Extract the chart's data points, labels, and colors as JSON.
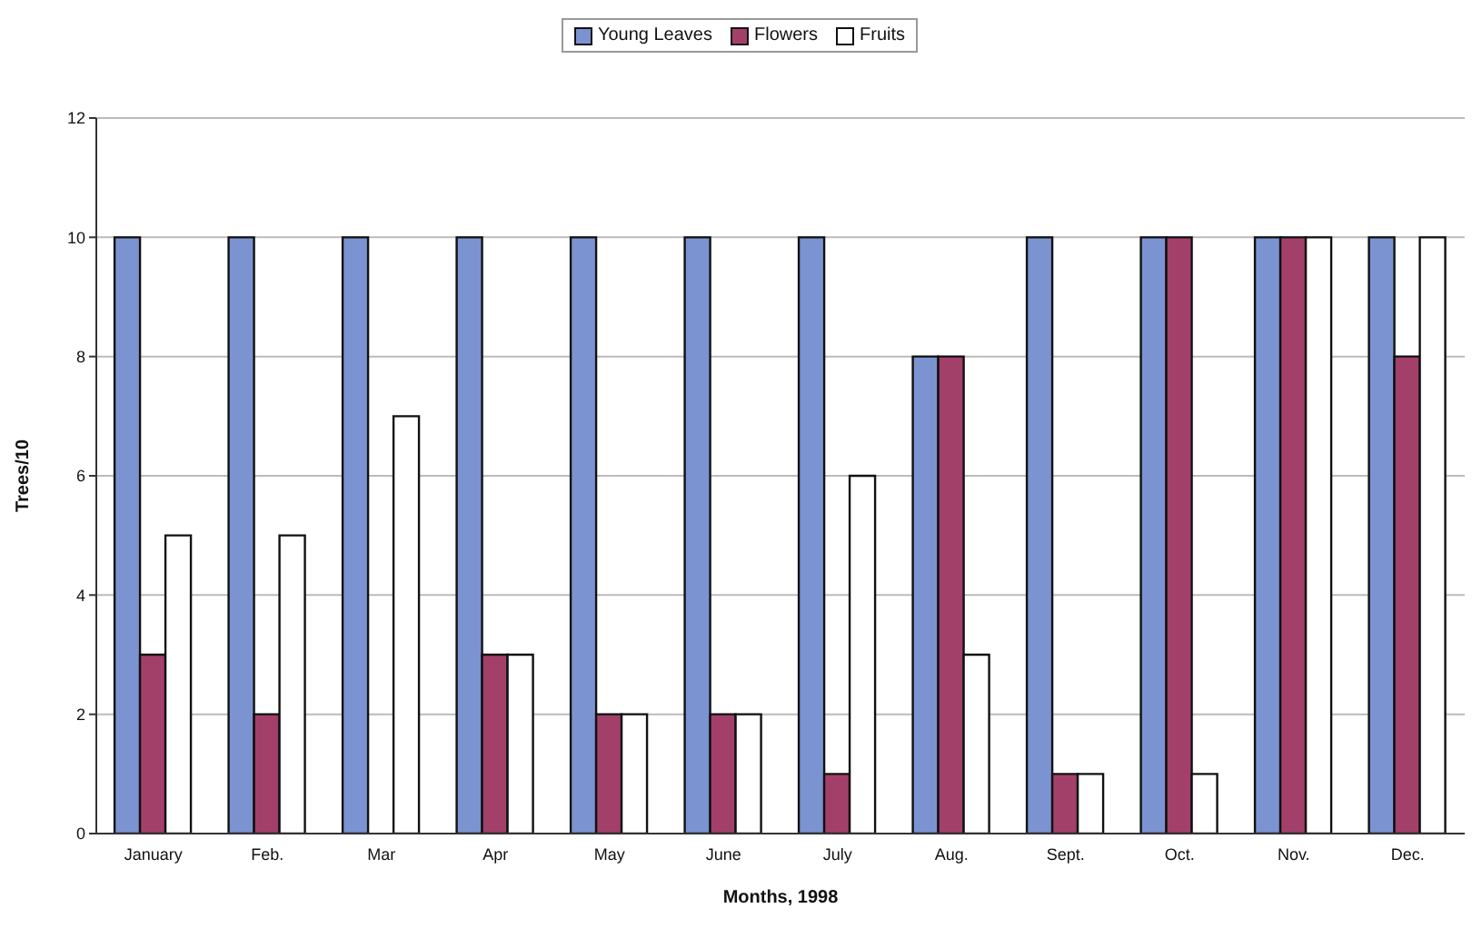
{
  "chart_data": {
    "type": "bar",
    "xlabel": "Months, 1998",
    "ylabel": "Trees/10",
    "categories": [
      "January",
      "Feb.",
      "Mar",
      "Apr",
      "May",
      "June",
      "July",
      "Aug.",
      "Sept.",
      "Oct.",
      "Nov.",
      "Dec."
    ],
    "series": [
      {
        "name": "Young Leaves",
        "color": "#7b93d0",
        "values": [
          10,
          10,
          10,
          10,
          10,
          10,
          10,
          8,
          10,
          10,
          10,
          10
        ]
      },
      {
        "name": "Flowers",
        "color": "#a3406a",
        "values": [
          3,
          2,
          0,
          3,
          2,
          2,
          1,
          8,
          1,
          10,
          10,
          8
        ]
      },
      {
        "name": "Fruits",
        "color": "#ffffff",
        "values": [
          5,
          5,
          7,
          3,
          2,
          2,
          6,
          3,
          1,
          1,
          10,
          10
        ]
      }
    ],
    "ylim": [
      0,
      12
    ],
    "yticks": [
      0,
      2,
      4,
      6,
      8,
      10,
      12
    ],
    "grid": "y",
    "legend": "top"
  }
}
